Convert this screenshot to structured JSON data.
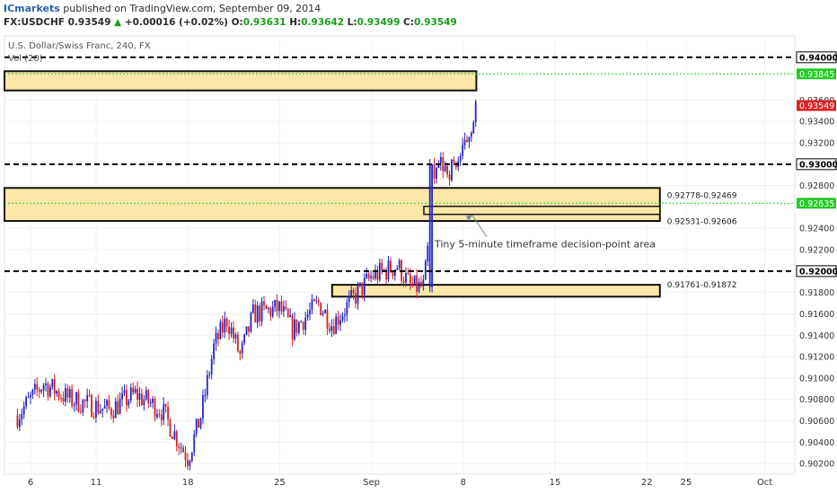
{
  "header": {
    "publisher": "ICmarkets",
    "published_text": "published on TradingView.com, September 09, 2014",
    "symbol": "FX:USDCHF",
    "last": "0.93549",
    "change_arrow": "▲",
    "change": "+0.00016 (+0.02%)",
    "open_label": "O:",
    "open": "0.93631",
    "high_label": "H:",
    "high": "0.93642",
    "low_label": "L:",
    "low": "0.93499",
    "close_label": "C:",
    "close": "0.93549"
  },
  "chart_title": "U.S. Dollar/Swiss Franc, 240, FX",
  "volume_label": "Vol (20)",
  "colors": {
    "up_candle": "#2424c8",
    "down_candle": "#d42020",
    "zone_fill": "#fbe7a8",
    "zone_border": "#111111",
    "green_line": "#22cc22",
    "current_price": "#e02020",
    "axis_text": "#333333"
  },
  "chart_data": {
    "type": "candlestick",
    "title": "U.S. Dollar/Swiss Franc, 240, FX",
    "x_ticks": [
      "6",
      "11",
      "18",
      "25",
      "Sep",
      "8",
      "15",
      "22",
      "25",
      "Oct"
    ],
    "y_ticks": [
      "0.90200",
      "0.90400",
      "0.90600",
      "0.90800",
      "0.91000",
      "0.91200",
      "0.91400",
      "0.91600",
      "0.91800",
      "0.92200",
      "0.92400",
      "0.92800",
      "0.93200",
      "0.93400",
      "0.93600"
    ],
    "ylim": [
      0.901,
      0.942
    ],
    "price_lines": [
      {
        "label": "0.94000",
        "value": 0.94,
        "style": "dashed-black"
      },
      {
        "label": "0.93845",
        "value": 0.93845,
        "style": "dotted-green"
      },
      {
        "label": "0.93000",
        "value": 0.93,
        "style": "dashed-black"
      },
      {
        "label": "0.92635",
        "value": 0.92635,
        "style": "dotted-green"
      },
      {
        "label": "0.92000",
        "value": 0.92,
        "style": "dashed-black"
      }
    ],
    "current_price": {
      "label": "0.93549",
      "value": 0.93549
    },
    "zones": [
      {
        "top": 0.9387,
        "bottom": 0.9369,
        "end": "Sep 9",
        "label": ""
      },
      {
        "top": 0.92778,
        "bottom": 0.92469,
        "end": "Sep 23",
        "label": "0.92778-0.92469"
      },
      {
        "top": 0.92606,
        "bottom": 0.92531,
        "start": "Sep 5",
        "end": "Sep 23",
        "label": "0.92531-0.92606"
      },
      {
        "top": 0.91872,
        "bottom": 0.91761,
        "start": "Aug 29",
        "end": "Sep 23",
        "label": "0.91761-0.91872"
      }
    ],
    "annotation": "Tiny 5-minute timeframe decision-point area",
    "anchors": [
      {
        "date": "Aug 5",
        "price": 0.9065
      },
      {
        "date": "Aug 7",
        "price": 0.9095
      },
      {
        "date": "Aug 9",
        "price": 0.908
      },
      {
        "date": "Aug 12",
        "price": 0.907
      },
      {
        "date": "Aug 14",
        "price": 0.9085
      },
      {
        "date": "Aug 16",
        "price": 0.907
      },
      {
        "date": "Aug 18",
        "price": 0.9025
      },
      {
        "date": "Aug 19",
        "price": 0.9065
      },
      {
        "date": "Aug 20",
        "price": 0.913
      },
      {
        "date": "Aug 21",
        "price": 0.9155
      },
      {
        "date": "Aug 22",
        "price": 0.912
      },
      {
        "date": "Aug 23",
        "price": 0.916
      },
      {
        "date": "Aug 25",
        "price": 0.9165
      },
      {
        "date": "Aug 26",
        "price": 0.9145
      },
      {
        "date": "Aug 28",
        "price": 0.917
      },
      {
        "date": "Aug 29",
        "price": 0.915
      },
      {
        "date": "Sep 1",
        "price": 0.9195
      },
      {
        "date": "Sep 2",
        "price": 0.92
      },
      {
        "date": "Sep 3",
        "price": 0.9205
      },
      {
        "date": "Sep 4",
        "price": 0.9185
      },
      {
        "date": "Sep 5",
        "price": 0.9185
      },
      {
        "date": "Sep 6",
        "price": 0.93
      },
      {
        "date": "Sep 7",
        "price": 0.9295
      },
      {
        "date": "Sep 8",
        "price": 0.931
      },
      {
        "date": "Sep 9",
        "price": 0.9355
      }
    ]
  }
}
